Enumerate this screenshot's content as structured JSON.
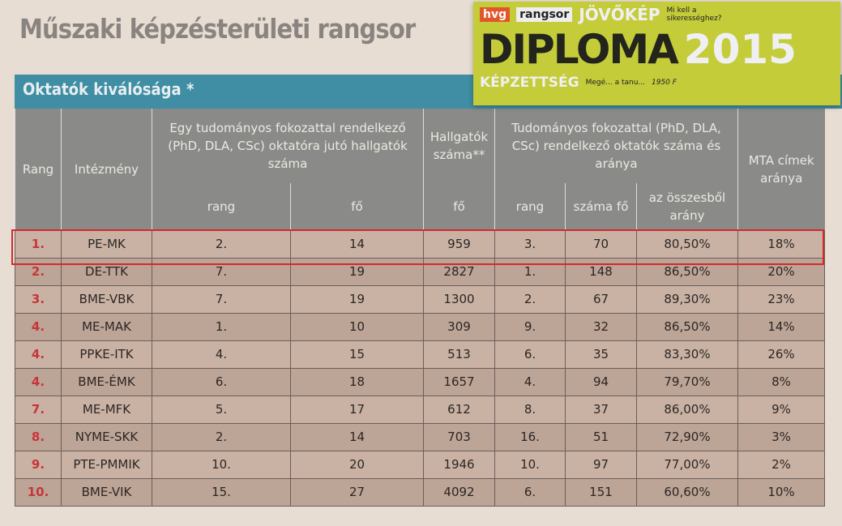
{
  "title": "Műszaki képzésterületi rangsor",
  "section": "Oktatók kiválósága *",
  "headers": {
    "rang": "Rang",
    "intezmeny": "Intézmény",
    "group1": "Egy tudományos fokozattal rendelkező (PhD, DLA, CSc) oktatóra jutó hallgatók száma",
    "g1_rang": "rang",
    "g1_fo": "fő",
    "hallgatok": "Hallgatók száma**",
    "hallgatok_fo": "fő",
    "group2": "Tudományos fokozattal (PhD, DLA, CSc) rendelkező oktatók száma és aránya",
    "g2_rang": "rang",
    "g2_szama": "száma fő",
    "g2_arany": "az összesből arány",
    "mta": "MTA címek aránya"
  },
  "rows": [
    [
      "1.",
      "PE-MK",
      "2.",
      "14",
      "959",
      "3.",
      "70",
      "80,50%",
      "18%"
    ],
    [
      "2.",
      "DE-TTK",
      "7.",
      "19",
      "2827",
      "1.",
      "148",
      "86,50%",
      "20%"
    ],
    [
      "3.",
      "BME-VBK",
      "7.",
      "19",
      "1300",
      "2.",
      "67",
      "89,30%",
      "23%"
    ],
    [
      "4.",
      "ME-MAK",
      "1.",
      "10",
      "309",
      "9.",
      "32",
      "86,50%",
      "14%"
    ],
    [
      "4.",
      "PPKE-ITK",
      "4.",
      "15",
      "513",
      "6.",
      "35",
      "83,30%",
      "26%"
    ],
    [
      "4.",
      "BME-ÉMK",
      "6.",
      "18",
      "1657",
      "4.",
      "94",
      "79,70%",
      "8%"
    ],
    [
      "7.",
      "ME-MFK",
      "5.",
      "17",
      "612",
      "8.",
      "37",
      "86,00%",
      "9%"
    ],
    [
      "8.",
      "NYME-SKK",
      "2.",
      "14",
      "703",
      "16.",
      "51",
      "72,90%",
      "3%"
    ],
    [
      "9.",
      "PTE-PMMIK",
      "10.",
      "20",
      "1946",
      "10.",
      "97",
      "77,00%",
      "2%"
    ],
    [
      "10.",
      "BME-VIK",
      "15.",
      "27",
      "4092",
      "6.",
      "151",
      "60,60%",
      "10%"
    ]
  ],
  "highlight_color": "#d42a2f",
  "magazine": {
    "brand": "hvg",
    "brand2": "rangsor",
    "word1": "JÖVŐKÉP",
    "sub1": "Mi kell a sikerességhez?",
    "main": "DIPLOMA",
    "word2": "KÉPZETTSÉG",
    "sub2": "Megé... a tanu...",
    "year": "2015",
    "price": "1950 F"
  }
}
